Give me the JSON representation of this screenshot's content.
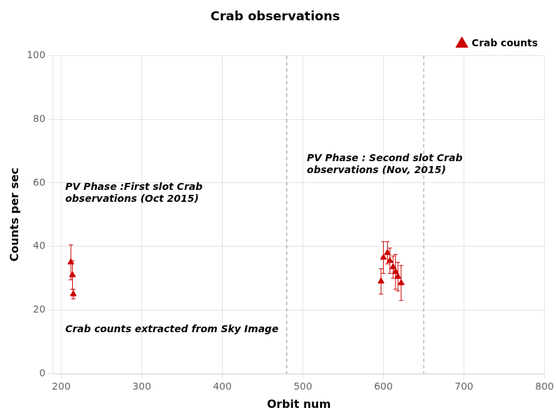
{
  "chart_data": {
    "type": "scatter",
    "title": "Crab observations",
    "xlabel": "Orbit num",
    "ylabel": "Counts per sec",
    "xlim": [
      190,
      800
    ],
    "ylim": [
      0,
      100
    ],
    "xticks": [
      200,
      300,
      400,
      500,
      600,
      700,
      800
    ],
    "yticks": [
      0,
      20,
      40,
      60,
      80,
      100
    ],
    "grid": true,
    "legend": "upper right",
    "series": [
      {
        "name": "Crab counts",
        "color": "#cc0000",
        "marker": "triangle",
        "x": [
          212,
          214,
          215,
          597,
          600,
          605,
          608,
          612,
          615,
          618,
          622
        ],
        "values": [
          35.0,
          31.0,
          25.0,
          29.0,
          36.5,
          38.0,
          35.5,
          33.5,
          32.0,
          30.5,
          28.5
        ],
        "yerr": [
          5.5,
          4.5,
          1.5,
          4.0,
          5.0,
          3.5,
          4.0,
          3.5,
          5.5,
          4.5,
          5.5
        ]
      }
    ],
    "vlines": [
      480,
      650
    ],
    "annotations": [
      {
        "text": "PV Phase :First slot Crab\nobservations (Oct 2015)",
        "x": 205,
        "y": 54
      },
      {
        "text": "PV Phase : Second slot Crab\nobservations (Nov, 2015)",
        "x": 505,
        "y": 63
      },
      {
        "text": "Crab counts extracted from Sky Image",
        "x": 205,
        "y": 13
      }
    ]
  }
}
